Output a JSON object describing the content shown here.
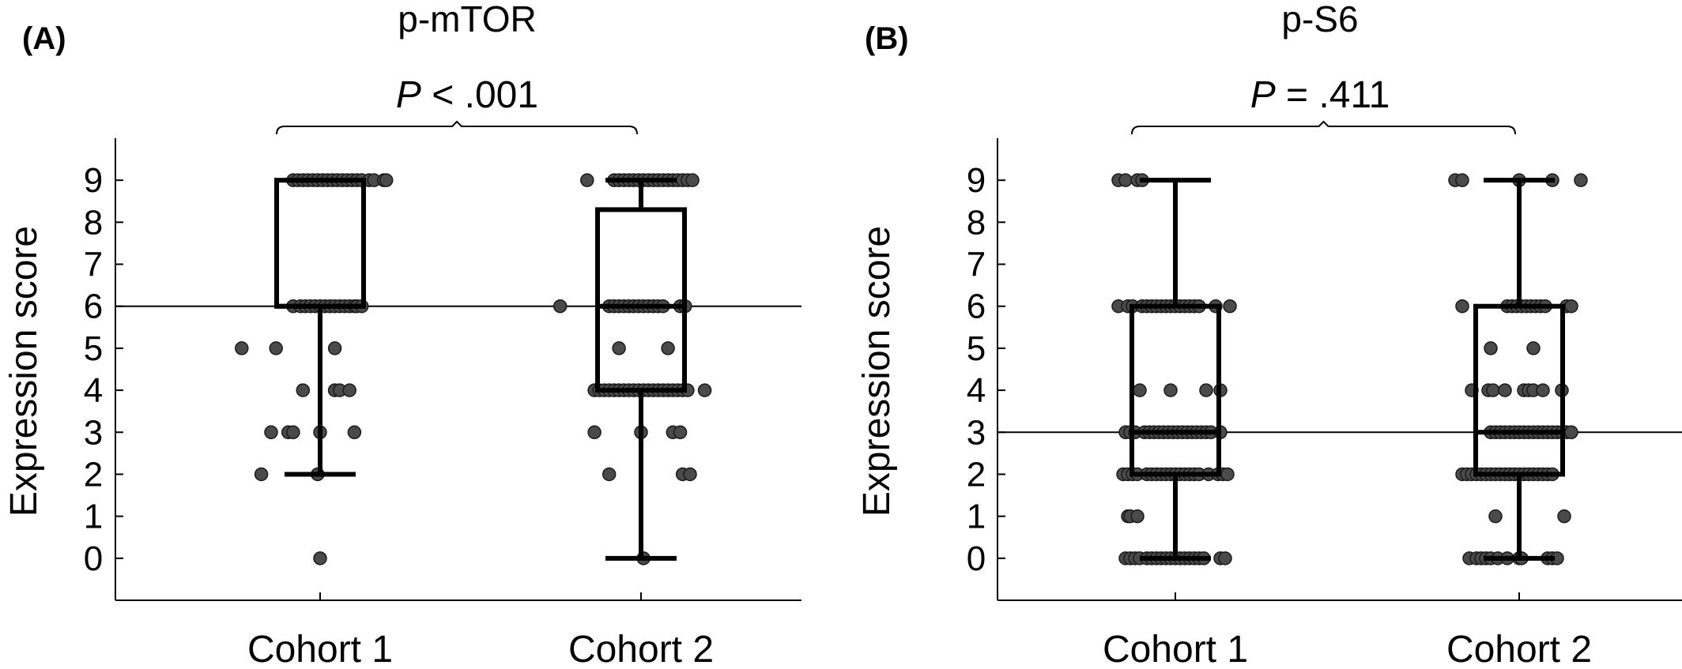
{
  "chart_data": [
    {
      "type": "box",
      "panel_label": "(A)",
      "title": "p-mTOR",
      "p_italic": "P",
      "p_rest": " < .001",
      "ylabel": "Expression score",
      "ylim": [
        -1,
        10
      ],
      "yticks": [
        0,
        1,
        2,
        3,
        4,
        5,
        6,
        7,
        8,
        9
      ],
      "reference_line": 6,
      "categories": [
        "Cohort 1",
        "Cohort 2"
      ],
      "boxes": [
        {
          "whisker_low": 2,
          "q1": 6,
          "median": 6,
          "q3": 9,
          "whisker_high": 9
        },
        {
          "whisker_low": 0,
          "q1": 4,
          "median": 6,
          "q3": 8.3,
          "whisker_high": 9
        }
      ],
      "points": [
        [
          {
            "v": 9,
            "o": [
              -0.11,
              -0.09,
              -0.07,
              -0.05,
              -0.03,
              -0.01,
              0.01,
              0.03,
              0.05,
              0.07,
              0.09,
              0.11,
              0.13,
              0.15,
              0.17,
              0.2,
              0.22,
              0.26,
              0.27
            ]
          },
          {
            "v": 6,
            "o": [
              -0.11,
              -0.08,
              -0.06,
              -0.04,
              -0.02,
              0.0,
              0.02,
              0.04,
              0.06,
              0.08,
              0.1,
              0.12,
              0.14,
              0.15,
              0.17
            ]
          },
          {
            "v": 5,
            "o": [
              -0.32,
              -0.18,
              0.06
            ]
          },
          {
            "v": 4,
            "o": [
              -0.07,
              0.06,
              0.08,
              0.12
            ]
          },
          {
            "v": 3,
            "o": [
              -0.2,
              -0.13,
              -0.11,
              0.0,
              0.14
            ]
          },
          {
            "v": 2,
            "o": [
              -0.24,
              -0.01
            ]
          },
          {
            "v": 0,
            "o": [
              0.0
            ]
          }
        ],
        [
          {
            "v": 9,
            "o": [
              -0.22,
              -0.11,
              -0.09,
              -0.07,
              -0.05,
              -0.03,
              -0.01,
              0.01,
              0.03,
              0.05,
              0.07,
              0.09,
              0.11,
              0.13,
              0.15,
              0.17,
              0.19,
              0.21
            ]
          },
          {
            "v": 6,
            "o": [
              -0.33,
              -0.13,
              -0.11,
              -0.09,
              -0.07,
              -0.05,
              -0.03,
              -0.01,
              0.01,
              0.03,
              0.05,
              0.07,
              0.09,
              0.16,
              0.18
            ]
          },
          {
            "v": 5,
            "o": [
              -0.09,
              0.11
            ]
          },
          {
            "v": 4,
            "o": [
              -0.19,
              -0.17,
              -0.15,
              -0.13,
              -0.11,
              -0.09,
              -0.07,
              -0.05,
              -0.03,
              -0.01,
              0.01,
              0.03,
              0.05,
              0.07,
              0.09,
              0.11,
              0.13,
              0.15,
              0.17,
              0.19,
              0.26
            ]
          },
          {
            "v": 3,
            "o": [
              -0.19,
              0.0,
              0.13,
              0.16
            ]
          },
          {
            "v": 2,
            "o": [
              -0.13,
              0.17,
              0.2
            ]
          },
          {
            "v": 0,
            "o": [
              0.01
            ]
          }
        ]
      ]
    },
    {
      "type": "box",
      "panel_label": "(B)",
      "title": "p-S6",
      "p_italic": "P",
      "p_rest": " = .411",
      "ylabel": "Expression score",
      "ylim": [
        -1,
        10
      ],
      "yticks": [
        0,
        1,
        2,
        3,
        4,
        5,
        6,
        7,
        8,
        9
      ],
      "reference_line": 3,
      "categories": [
        "Cohort 1",
        "Cohort 2"
      ],
      "boxes": [
        {
          "whisker_low": 0,
          "q1": 2,
          "median": 3,
          "q3": 6,
          "whisker_high": 9
        },
        {
          "whisker_low": 0,
          "q1": 2,
          "median": 3,
          "q3": 6,
          "whisker_high": 9
        }
      ],
      "points": [
        [
          {
            "v": 9,
            "o": [
              -0.24,
              -0.21,
              -0.16,
              -0.14
            ]
          },
          {
            "v": 6,
            "o": [
              -0.24,
              -0.2,
              -0.18,
              -0.14,
              -0.12,
              -0.1,
              -0.08,
              -0.06,
              -0.04,
              -0.02,
              0.0,
              0.02,
              0.04,
              0.06,
              0.08,
              0.1,
              0.17,
              0.23
            ]
          },
          {
            "v": 4,
            "o": [
              -0.15,
              -0.02,
              0.13,
              0.19
            ]
          },
          {
            "v": 3,
            "o": [
              -0.21,
              -0.19,
              -0.17,
              -0.13,
              -0.11,
              -0.09,
              -0.07,
              -0.05,
              -0.03,
              -0.01,
              0.01,
              0.03,
              0.05,
              0.07,
              0.09,
              0.11,
              0.13,
              0.15,
              0.19
            ]
          },
          {
            "v": 2,
            "o": [
              -0.22,
              -0.2,
              -0.18,
              -0.16,
              -0.12,
              -0.1,
              -0.08,
              -0.06,
              -0.04,
              -0.02,
              0.0,
              0.02,
              0.04,
              0.06,
              0.08,
              0.1,
              0.14,
              0.18,
              0.2,
              0.22
            ]
          },
          {
            "v": 1,
            "o": [
              -0.2,
              -0.19,
              -0.16
            ]
          },
          {
            "v": 0,
            "o": [
              -0.21,
              -0.19,
              -0.17,
              -0.15,
              -0.12,
              -0.1,
              -0.08,
              -0.06,
              -0.04,
              -0.02,
              0.0,
              0.02,
              0.04,
              0.06,
              0.08,
              0.1,
              0.12,
              0.19,
              0.21
            ]
          }
        ],
        [
          {
            "v": 9,
            "o": [
              -0.27,
              -0.24,
              0.0,
              0.14,
              0.26
            ]
          },
          {
            "v": 6,
            "o": [
              -0.24,
              -0.05,
              -0.03,
              -0.01,
              0.01,
              0.03,
              0.05,
              0.07,
              0.09,
              0.11,
              0.2,
              0.22
            ]
          },
          {
            "v": 5,
            "o": [
              -0.12,
              0.06
            ]
          },
          {
            "v": 4,
            "o": [
              -0.2,
              -0.13,
              -0.11,
              -0.06,
              0.02,
              0.04,
              0.06,
              0.1,
              0.18
            ]
          },
          {
            "v": 3,
            "o": [
              -0.12,
              -0.1,
              -0.08,
              -0.06,
              -0.04,
              -0.02,
              0.0,
              0.02,
              0.04,
              0.06,
              0.08,
              0.1,
              0.12,
              0.14,
              0.16,
              0.18,
              0.2,
              0.22
            ]
          },
          {
            "v": 2,
            "o": [
              -0.24,
              -0.22,
              -0.2,
              -0.18,
              -0.16,
              -0.14,
              -0.12,
              -0.1,
              -0.08,
              -0.06,
              -0.04,
              -0.02,
              0.0,
              0.02,
              0.04,
              0.06,
              0.08,
              0.1,
              0.12,
              0.14
            ]
          },
          {
            "v": 1,
            "o": [
              -0.1,
              0.19
            ]
          },
          {
            "v": 0,
            "o": [
              -0.21,
              -0.18,
              -0.16,
              -0.14,
              -0.12,
              -0.09,
              -0.05,
              0.0,
              0.01,
              0.12,
              0.14,
              0.16
            ]
          }
        ]
      ]
    }
  ]
}
